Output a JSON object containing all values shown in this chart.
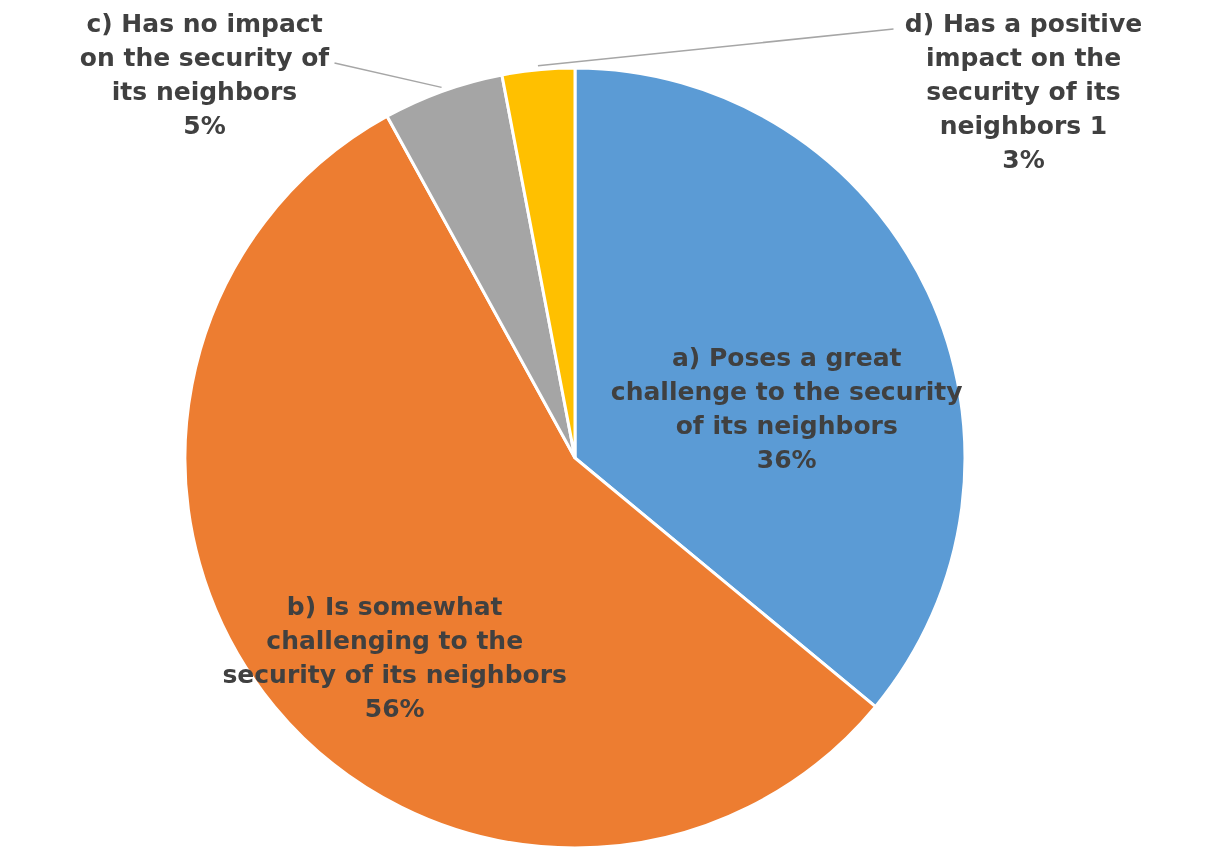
{
  "chart_data": {
    "type": "pie",
    "categories": [
      "a) Poses a great challenge to the security of its neighbors",
      "b) Is somewhat challenging to the security of its neighbors",
      "c) Has no impact on the security of its neighbors",
      "d) Has a positive impact on the security of its neighbors 1"
    ],
    "values": [
      36,
      56,
      5,
      3
    ],
    "colors": [
      "#5b9bd5",
      "#ed7d31",
      "#a5a5a5",
      "#ffc000"
    ],
    "value_labels": [
      "36%",
      "56%",
      "5%",
      "3%"
    ]
  }
}
